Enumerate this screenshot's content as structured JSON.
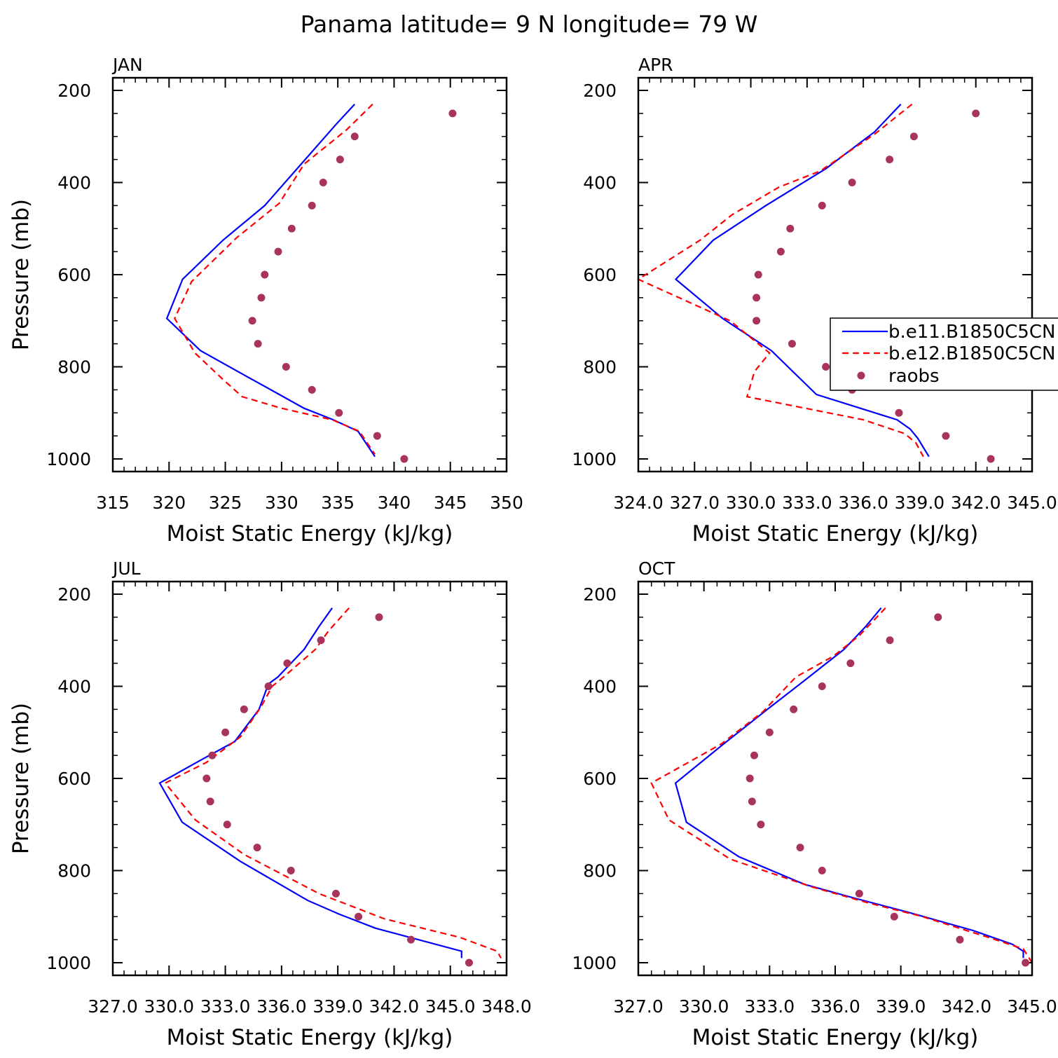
{
  "title": "Panama  latitude= 9 N longitude= 79 W",
  "colors": {
    "series1": "#0000ff",
    "series2": "#ff0000",
    "raobs": "#a8345e"
  },
  "chart_data": [
    {
      "type": "line",
      "title": "JAN",
      "xlabel": "Moist Static Energy (kJ/kg)",
      "ylabel": "Pressure (mb)",
      "xlim": [
        315,
        350
      ],
      "ylim": [
        1000,
        200
      ],
      "xticks": [
        315,
        320,
        325,
        330,
        335,
        340,
        345,
        350
      ],
      "xtick_labels": [
        "315",
        "320",
        "325",
        "330",
        "335",
        "340",
        "345",
        "350"
      ],
      "yticks": [
        200,
        400,
        600,
        800,
        1000
      ],
      "ytick_labels": [
        "200",
        "400",
        "600",
        "800",
        "1000"
      ],
      "series": [
        {
          "name": "b.e11.B1850C5CN",
          "style": "solid",
          "x": [
            336.5,
            334.8,
            331.2,
            328.5,
            324.8,
            321.2,
            319.8,
            322.8,
            327.2,
            329.8,
            332.0,
            334.6,
            336.8,
            338.3
          ],
          "y": [
            230,
            275,
            375,
            450,
            525,
            610,
            695,
            765,
            825,
            860,
            890,
            915,
            940,
            995
          ]
        },
        {
          "name": "b.e12.B1850C5CN",
          "style": "dashed",
          "x": [
            338.1,
            335.8,
            332.0,
            329.8,
            326.0,
            322.0,
            320.5,
            322.3,
            324.9,
            326.5,
            330.0,
            334.5,
            336.9,
            338.3
          ],
          "y": [
            230,
            285,
            360,
            445,
            520,
            615,
            695,
            770,
            830,
            865,
            890,
            915,
            940,
            990
          ]
        },
        {
          "name": "raobs",
          "style": "points",
          "x": [
            345.2,
            336.5,
            335.2,
            333.7,
            332.7,
            330.9,
            329.7,
            328.5,
            328.2,
            327.4,
            327.9,
            330.4,
            332.7,
            335.1,
            338.5,
            340.9
          ],
          "y": [
            250,
            300,
            350,
            400,
            450,
            500,
            550,
            600,
            650,
            700,
            750,
            800,
            850,
            900,
            950,
            1000
          ]
        }
      ]
    },
    {
      "type": "line",
      "title": "APR",
      "xlabel": "Moist Static Energy (kJ/kg)",
      "ylabel": "",
      "xlim": [
        324.0,
        345.0
      ],
      "ylim": [
        1000,
        200
      ],
      "xticks": [
        324,
        327,
        330,
        333,
        336,
        339,
        342,
        345
      ],
      "xtick_labels": [
        "324.0",
        "327.0",
        "330.0",
        "333.0",
        "336.0",
        "339.0",
        "342.0",
        "345.0"
      ],
      "yticks": [
        200,
        400,
        600,
        800,
        1000
      ],
      "ytick_labels": [
        "200",
        "400",
        "600",
        "800",
        "1000"
      ],
      "legend": {
        "entries": [
          "b.e11.B1850C5CN",
          "b.e12.B1850C5CN",
          "raobs"
        ],
        "placement": "right"
      },
      "series": [
        {
          "name": "b.e11.B1850C5CN",
          "style": "solid",
          "x": [
            338.0,
            336.6,
            334.0,
            330.8,
            328.0,
            326.0,
            328.5,
            331.1,
            333.5,
            337.8,
            338.5,
            338.9,
            339.5
          ],
          "y": [
            230,
            290,
            370,
            450,
            525,
            610,
            695,
            765,
            860,
            915,
            935,
            955,
            995
          ]
        },
        {
          "name": "b.e12.B1850C5CN",
          "style": "dashed",
          "x": [
            338.6,
            336.6,
            333.7,
            331.5,
            329.0,
            327.3,
            324.0,
            328.9,
            331.0,
            330.2,
            329.8,
            336.0,
            338.2,
            338.8,
            339.2
          ],
          "y": [
            230,
            295,
            375,
            410,
            470,
            525,
            610,
            700,
            770,
            810,
            865,
            915,
            945,
            965,
            995
          ]
        },
        {
          "name": "raobs",
          "style": "points",
          "x": [
            342.0,
            338.7,
            337.4,
            335.4,
            333.8,
            332.1,
            331.6,
            330.4,
            330.3,
            330.3,
            332.2,
            334.0,
            335.4,
            337.9,
            340.4,
            342.8
          ],
          "y": [
            250,
            300,
            350,
            400,
            450,
            500,
            550,
            600,
            650,
            700,
            750,
            800,
            850,
            900,
            950,
            1000
          ]
        }
      ]
    },
    {
      "type": "line",
      "title": "JUL",
      "xlabel": "Moist Static Energy (kJ/kg)",
      "ylabel": "Pressure (mb)",
      "xlim": [
        327.0,
        348.0
      ],
      "ylim": [
        1000,
        200
      ],
      "xticks": [
        327,
        330,
        333,
        336,
        339,
        342,
        345,
        348
      ],
      "xtick_labels": [
        "327.0",
        "330.0",
        "333.0",
        "336.0",
        "339.0",
        "342.0",
        "345.0",
        "348.0"
      ],
      "yticks": [
        200,
        400,
        600,
        800,
        1000
      ],
      "ytick_labels": [
        "200",
        "400",
        "600",
        "800",
        "1000"
      ],
      "series": [
        {
          "name": "b.e11.B1850C5CN",
          "style": "solid",
          "x": [
            338.7,
            338.0,
            337.2,
            335.8,
            335.3,
            334.8,
            333.5,
            331.7,
            329.5,
            330.7,
            333.8,
            337.4,
            339.1,
            341.0,
            345.6,
            345.6
          ],
          "y": [
            230,
            270,
            320,
            380,
            395,
            450,
            520,
            560,
            610,
            695,
            780,
            865,
            895,
            925,
            975,
            990
          ]
        },
        {
          "name": "b.e12.B1850C5CN",
          "style": "dashed",
          "x": [
            339.6,
            338.5,
            337.8,
            336.1,
            335.5,
            334.9,
            333.8,
            332.0,
            329.8,
            331.4,
            334.0,
            338.0,
            341.5,
            345.5,
            347.5,
            347.7
          ],
          "y": [
            230,
            280,
            320,
            380,
            400,
            445,
            510,
            565,
            610,
            690,
            765,
            850,
            905,
            945,
            975,
            990
          ]
        },
        {
          "name": "raobs",
          "style": "points",
          "x": [
            341.2,
            338.1,
            336.3,
            335.3,
            334.0,
            333.0,
            332.3,
            332.0,
            332.2,
            333.1,
            334.7,
            336.5,
            338.9,
            340.1,
            342.9,
            346.0
          ],
          "y": [
            250,
            300,
            350,
            400,
            450,
            500,
            550,
            600,
            650,
            700,
            750,
            800,
            850,
            900,
            950,
            1000
          ]
        }
      ]
    },
    {
      "type": "line",
      "title": "OCT",
      "xlabel": "Moist Static Energy (kJ/kg)",
      "ylabel": "",
      "xlim": [
        327.0,
        345.0
      ],
      "ylim": [
        1000,
        200
      ],
      "xticks": [
        327,
        330,
        333,
        336,
        339,
        342,
        345
      ],
      "xtick_labels": [
        "327.0",
        "330.0",
        "333.0",
        "336.0",
        "339.0",
        "342.0",
        "345.0"
      ],
      "yticks": [
        200,
        400,
        600,
        800,
        1000
      ],
      "ytick_labels": [
        "200",
        "400",
        "600",
        "800",
        "1000"
      ],
      "series": [
        {
          "name": "b.e11.B1850C5CN",
          "style": "solid",
          "x": [
            338.1,
            337.4,
            336.4,
            334.8,
            332.9,
            330.9,
            328.7,
            329.2,
            331.6,
            334.6,
            336.9,
            339.3,
            342.3,
            344.1,
            344.6,
            344.6
          ],
          "y": [
            230,
            270,
            320,
            380,
            450,
            525,
            610,
            695,
            770,
            830,
            860,
            890,
            930,
            960,
            975,
            990
          ]
        },
        {
          "name": "b.e12.B1850C5CN",
          "style": "dashed",
          "x": [
            338.3,
            337.1,
            335.9,
            334.2,
            332.7,
            330.8,
            327.6,
            328.4,
            331.2,
            334.9,
            337.5,
            340.0,
            343.0,
            344.6,
            345.0
          ],
          "y": [
            230,
            290,
            335,
            380,
            455,
            525,
            610,
            690,
            775,
            835,
            870,
            900,
            945,
            970,
            1000
          ]
        },
        {
          "name": "raobs",
          "style": "points",
          "x": [
            340.7,
            338.5,
            336.7,
            335.4,
            334.1,
            333.0,
            332.3,
            332.1,
            332.2,
            332.6,
            334.4,
            335.4,
            337.1,
            338.7,
            341.7,
            344.7
          ],
          "y": [
            250,
            300,
            350,
            400,
            450,
            500,
            550,
            600,
            650,
            700,
            750,
            800,
            850,
            900,
            950,
            1000
          ]
        }
      ]
    }
  ]
}
